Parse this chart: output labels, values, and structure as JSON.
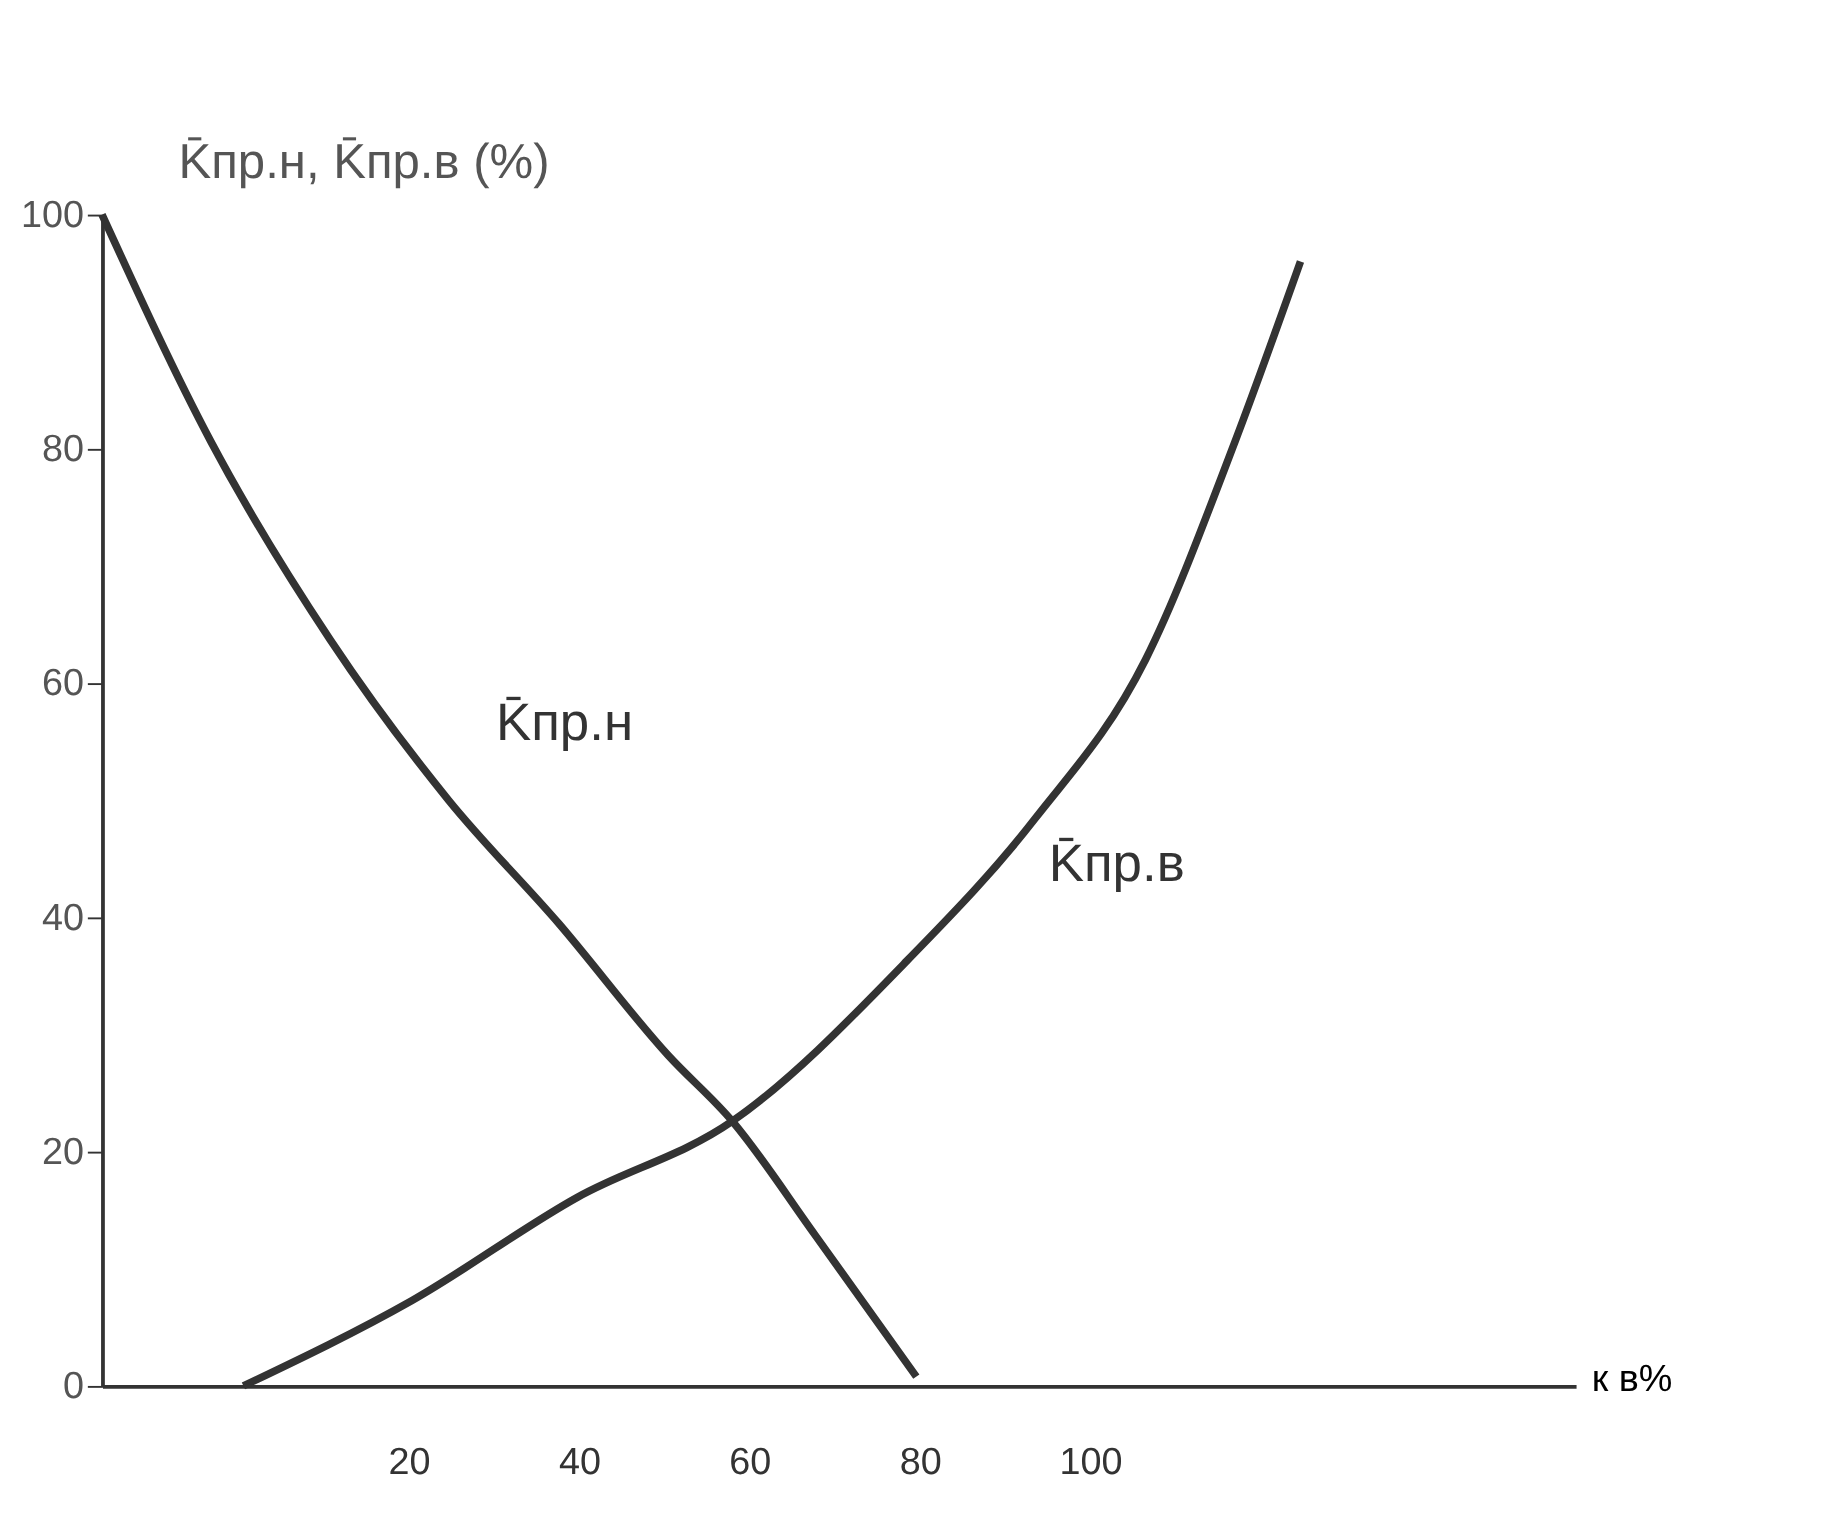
{
  "chart_data": {
    "type": "line",
    "xlabel": "к в%",
    "ylabel": "K̄пр.н, K̄пр.в (%)",
    "xlim": [
      -16,
      157
    ],
    "xticks": [
      20,
      40,
      60,
      80,
      100
    ],
    "ylim": [
      0,
      100
    ],
    "yticks": [
      0,
      20,
      40,
      60,
      80,
      100
    ],
    "grid": false,
    "legend": false,
    "marker": "none",
    "line_style": "solid",
    "series": [
      {
        "name": "K̄пр.н",
        "color": "#333333",
        "x": [
          -16,
          -3.2,
          10.8,
          24.7,
          37.6,
          50.5,
          58,
          67.7,
          79.6
        ],
        "values": [
          100,
          80.6,
          63.7,
          50,
          39.5,
          28.2,
          22.6,
          12.9,
          0.8
        ]
      },
      {
        "name": "K̄пр.в",
        "color": "#333333",
        "x": [
          0.6,
          20.4,
          39.8,
          58,
          78.5,
          93.5,
          106.5,
          117,
          124.7
        ],
        "values": [
          0,
          7.3,
          16.1,
          22.6,
          36.3,
          48.4,
          62,
          80.6,
          96
        ]
      }
    ]
  }
}
